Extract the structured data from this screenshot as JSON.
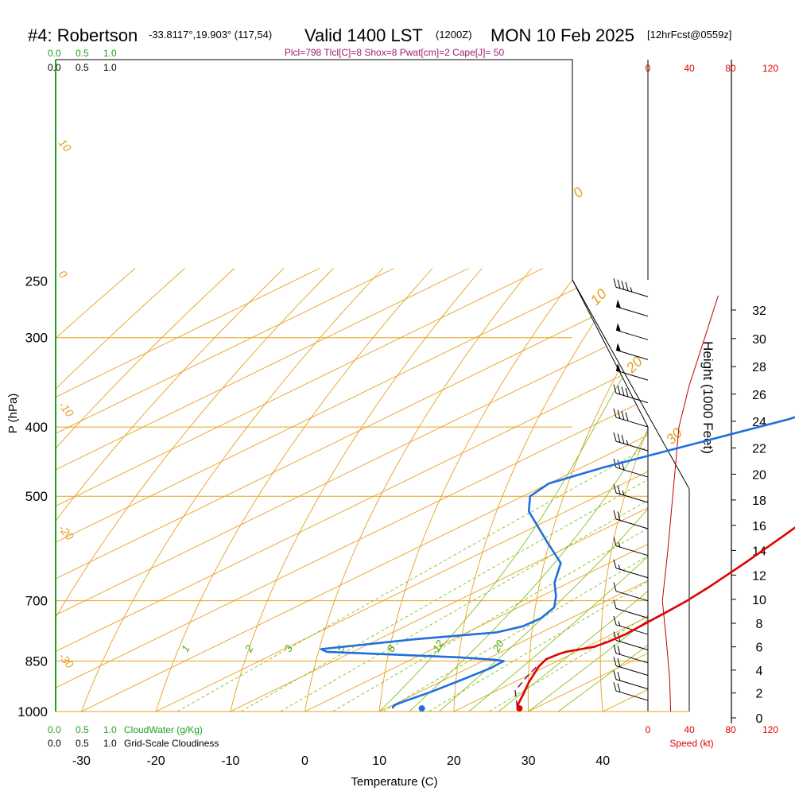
{
  "header": {
    "title_station": "#4: Robertson",
    "title_coords": "-33.8117°,19.903° (117,54)",
    "title_valid": "Valid 1400 LST",
    "title_z": "(1200Z)",
    "title_date": "MON 10 Feb 2025",
    "title_fcst": "[12hrFcst@0559z]",
    "stats_line": "Plcl=798 Tlcl[C]=8 Shox=8 Pwat[cm]=2 Cape[J]= 50"
  },
  "legend": {
    "top_green_0": "0.0",
    "top_green_1": "0.5",
    "top_green_2": "1.0",
    "top_black_0": "0.0",
    "top_black_1": "0.5",
    "top_black_2": "1.0",
    "bottom_green_0": "0.0",
    "bottom_green_1": "0.5",
    "bottom_green_2": "1.0",
    "cloudwater_label": "CloudWater (g/Kg)",
    "bottom_black_0": "0.0",
    "bottom_black_1": "0.5",
    "bottom_black_2": "1.0",
    "cloudiness_label": "Grid-Scale Cloudiness",
    "speed_top": [
      "0",
      "40",
      "80",
      "120"
    ],
    "speed_bottom": [
      "0",
      "40",
      "80",
      "120"
    ],
    "speed_label": "Speed (kt)"
  },
  "chart_data": {
    "type": "line",
    "xlabel": "Temperature (C)",
    "ylabel": "P (hPa)",
    "y2label": "Height (1000 Feet)",
    "xlim": [
      -35,
      45
    ],
    "ylim": [
      1000,
      250
    ],
    "x_ticks": [
      -30,
      -20,
      -10,
      0,
      10,
      20,
      30,
      40
    ],
    "p_ticks": [
      250,
      300,
      400,
      500,
      700,
      850,
      1000
    ],
    "height_ticks": [
      0,
      2,
      4,
      6,
      8,
      10,
      12,
      14,
      16,
      18,
      20,
      22,
      24,
      26,
      28,
      30,
      32
    ],
    "adiabat_labels": [
      "-20",
      "-10",
      "0",
      "10",
      "20",
      "30"
    ],
    "adiabat_big_labels": [
      "0",
      "10",
      "20",
      "30"
    ],
    "mixing_ratio_labels": [
      "1",
      "2",
      "3",
      "5",
      "8",
      "12",
      "20"
    ],
    "series": [
      {
        "color": "#e00000",
        "points": [
          [
            28.0,
            990
          ],
          [
            27.3,
            985
          ],
          [
            26.5,
            975
          ],
          [
            24.5,
            945
          ],
          [
            22.0,
            910
          ],
          [
            19.0,
            865
          ],
          [
            18.0,
            845
          ],
          [
            18.3,
            830
          ],
          [
            18.6,
            825
          ],
          [
            19.5,
            820
          ],
          [
            21.0,
            812
          ],
          [
            21.5,
            800
          ],
          [
            21.8,
            780
          ],
          [
            21.5,
            755
          ],
          [
            21.1,
            720
          ],
          [
            20.8,
            700
          ],
          [
            20.0,
            670
          ],
          [
            18.2,
            620
          ],
          [
            16.0,
            570
          ],
          [
            14.0,
            530
          ],
          [
            11.8,
            500
          ],
          [
            8.0,
            460
          ],
          [
            4.0,
            420
          ],
          [
            0.5,
            390
          ],
          [
            -4.0,
            350
          ],
          [
            -8.0,
            310
          ],
          [
            -10.5,
            285
          ],
          [
            -12.0,
            270
          ],
          [
            -13.0,
            260
          ]
        ]
      },
      {
        "color": "#1f6fe0",
        "points": [
          [
            11.0,
            990
          ],
          [
            10.5,
            985
          ],
          [
            10.3,
            978
          ],
          [
            10.6,
            965
          ],
          [
            11.5,
            940
          ],
          [
            12.3,
            905
          ],
          [
            13.0,
            870
          ],
          [
            12.8,
            850
          ],
          [
            11.5,
            847
          ],
          [
            6.0,
            840
          ],
          [
            -13.5,
            825
          ],
          [
            -15.0,
            818
          ],
          [
            -5.0,
            792
          ],
          [
            4.0,
            775
          ],
          [
            5.8,
            760
          ],
          [
            6.0,
            740
          ],
          [
            4.8,
            715
          ],
          [
            2.0,
            690
          ],
          [
            -2.0,
            660
          ],
          [
            -6.5,
            620
          ],
          [
            -14.0,
            580
          ],
          [
            -25.0,
            525
          ],
          [
            -29.0,
            500
          ],
          [
            -30.0,
            480
          ],
          [
            -27.0,
            455
          ],
          [
            -21.0,
            420
          ],
          [
            -15.5,
            390
          ],
          [
            -12.5,
            365
          ],
          [
            -10.5,
            345
          ],
          [
            -9.3,
            330
          ],
          [
            -9.5,
            315
          ],
          [
            -11.0,
            300
          ],
          [
            -13.5,
            285
          ],
          [
            -16.5,
            270
          ],
          [
            -18.5,
            260
          ]
        ]
      },
      {
        "color": "#7a0a4a",
        "points": [
          [
            27.2,
            985
          ],
          [
            22.5,
            935
          ],
          [
            20.0,
            890
          ],
          [
            18.5,
            860
          ]
        ]
      }
    ],
    "surface_temp": 28.8,
    "surface_dewpoint": 15.7,
    "wind_speed_curve": [
      [
        22,
        1000
      ],
      [
        21,
        900
      ],
      [
        18,
        800
      ],
      [
        14,
        700
      ],
      [
        19,
        600
      ],
      [
        24,
        500
      ],
      [
        30,
        400
      ],
      [
        40,
        350
      ],
      [
        55,
        300
      ],
      [
        68,
        262
      ]
    ],
    "wind_barbs": [
      {
        "p": 263,
        "speed_kt": 45
      },
      {
        "p": 280,
        "speed_kt": 50
      },
      {
        "p": 302,
        "speed_kt": 55
      },
      {
        "p": 322,
        "speed_kt": 55
      },
      {
        "p": 344,
        "speed_kt": 50
      },
      {
        "p": 370,
        "speed_kt": 40
      },
      {
        "p": 400,
        "speed_kt": 40
      },
      {
        "p": 432,
        "speed_kt": 35
      },
      {
        "p": 470,
        "speed_kt": 30
      },
      {
        "p": 510,
        "speed_kt": 25
      },
      {
        "p": 555,
        "speed_kt": 20
      },
      {
        "p": 605,
        "speed_kt": 15
      },
      {
        "p": 650,
        "speed_kt": 15
      },
      {
        "p": 700,
        "speed_kt": 10
      },
      {
        "p": 740,
        "speed_kt": 10
      },
      {
        "p": 780,
        "speed_kt": 15
      },
      {
        "p": 820,
        "speed_kt": 20
      },
      {
        "p": 855,
        "speed_kt": 20
      },
      {
        "p": 890,
        "speed_kt": 20
      },
      {
        "p": 930,
        "speed_kt": 20
      },
      {
        "p": 965,
        "speed_kt": 20
      }
    ]
  },
  "colors": {
    "isobar": "#e8a020",
    "adiabat": "#e8a020",
    "moist_adiabat": "#88c020",
    "mixing": "#88c020",
    "temperature": "#e00000",
    "dewpoint": "#1f6fe0",
    "parcel": "#7a0a4a",
    "speed": "#c00000"
  }
}
